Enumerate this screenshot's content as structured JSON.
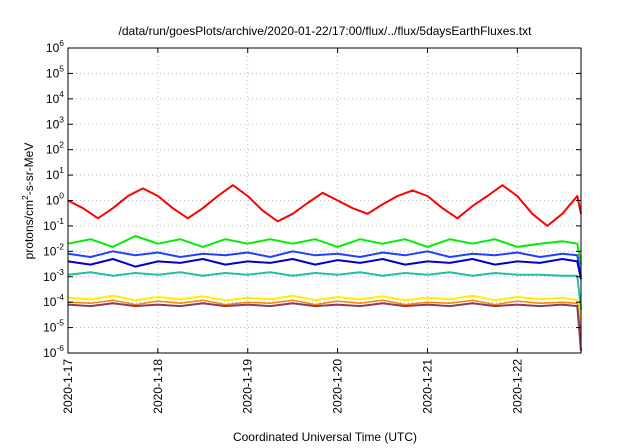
{
  "chart_data": {
    "type": "line",
    "title": "/data/run/goesPlots/archive/2020-01-22/17:00/flux/../flux/5daysEarthFluxes.txt",
    "xlabel": "Coordinated Universal Time (UTC)",
    "ylabel": {
      "base": "protons/cm",
      "sup": "2",
      "rest": "-s-sr-MeV"
    },
    "y_scale": "log",
    "ylim": [
      1e-06,
      1000000.0
    ],
    "y_ticks": [
      {
        "base": "10",
        "exp": "6",
        "value": 1000000.0
      },
      {
        "base": "10",
        "exp": "5",
        "value": 100000.0
      },
      {
        "base": "10",
        "exp": "4",
        "value": 10000.0
      },
      {
        "base": "10",
        "exp": "3",
        "value": 1000.0
      },
      {
        "base": "10",
        "exp": "2",
        "value": 100.0
      },
      {
        "base": "10",
        "exp": "1",
        "value": 10.0
      },
      {
        "base": "10",
        "exp": "0",
        "value": 1.0
      },
      {
        "base": "10",
        "exp": "-1",
        "value": 0.1
      },
      {
        "base": "10",
        "exp": "-2",
        "value": 0.01
      },
      {
        "base": "10",
        "exp": "-3",
        "value": 0.001
      },
      {
        "base": "10",
        "exp": "-4",
        "value": 0.0001
      },
      {
        "base": "10",
        "exp": "-5",
        "value": 1e-05
      },
      {
        "base": "10",
        "exp": "-6",
        "value": 1e-06
      }
    ],
    "x_ticks": [
      "2020-1-17",
      "2020-1-18",
      "2020-1-19",
      "2020-1-20",
      "2020-1-21",
      "2020-1-22"
    ],
    "xlim": [
      "2020-01-17 00:00",
      "2020-01-22 17:00"
    ],
    "grid": true,
    "series": [
      {
        "color": "#ff0000",
        "width": 2,
        "x": [
          "2020-01-17 00:00",
          "2020-01-17 04:00",
          "2020-01-17 08:00",
          "2020-01-17 12:00",
          "2020-01-17 16:00",
          "2020-01-17 20:00",
          "2020-01-18 00:00",
          "2020-01-18 04:00",
          "2020-01-18 08:00",
          "2020-01-18 12:00",
          "2020-01-18 16:00",
          "2020-01-18 20:00",
          "2020-01-19 00:00",
          "2020-01-19 04:00",
          "2020-01-19 08:00",
          "2020-01-19 12:00",
          "2020-01-19 16:00",
          "2020-01-19 20:00",
          "2020-01-20 00:00",
          "2020-01-20 04:00",
          "2020-01-20 08:00",
          "2020-01-20 12:00",
          "2020-01-20 16:00",
          "2020-01-20 20:00",
          "2020-01-21 00:00",
          "2020-01-21 04:00",
          "2020-01-21 08:00",
          "2020-01-21 12:00",
          "2020-01-21 16:00",
          "2020-01-21 20:00",
          "2020-01-22 00:00",
          "2020-01-22 04:00",
          "2020-01-22 08:00",
          "2020-01-22 12:00",
          "2020-01-22 16:00",
          "2020-01-22 17:00"
        ],
        "values": [
          1.0,
          0.5,
          0.2,
          0.5,
          1.5,
          3.0,
          1.5,
          0.5,
          0.2,
          0.5,
          1.5,
          4.0,
          1.5,
          0.4,
          0.15,
          0.3,
          0.8,
          2.0,
          1.0,
          0.5,
          0.3,
          0.7,
          1.5,
          2.5,
          1.5,
          0.5,
          0.2,
          0.6,
          1.5,
          4.0,
          1.5,
          0.3,
          0.1,
          0.3,
          1.5,
          0.3
        ]
      },
      {
        "color": "#00ee00",
        "width": 2,
        "x": [
          "2020-01-17 00:00",
          "2020-01-17 06:00",
          "2020-01-17 12:00",
          "2020-01-17 18:00",
          "2020-01-18 00:00",
          "2020-01-18 06:00",
          "2020-01-18 12:00",
          "2020-01-18 18:00",
          "2020-01-19 00:00",
          "2020-01-19 06:00",
          "2020-01-19 12:00",
          "2020-01-19 18:00",
          "2020-01-20 00:00",
          "2020-01-20 06:00",
          "2020-01-20 12:00",
          "2020-01-20 18:00",
          "2020-01-21 00:00",
          "2020-01-21 06:00",
          "2020-01-21 12:00",
          "2020-01-21 18:00",
          "2020-01-22 00:00",
          "2020-01-22 06:00",
          "2020-01-22 12:00",
          "2020-01-22 16:00",
          "2020-01-22 17:00"
        ],
        "values": [
          0.02,
          0.03,
          0.015,
          0.04,
          0.02,
          0.03,
          0.015,
          0.03,
          0.02,
          0.03,
          0.02,
          0.03,
          0.015,
          0.03,
          0.02,
          0.03,
          0.015,
          0.03,
          0.02,
          0.03,
          0.015,
          0.02,
          0.025,
          0.02,
          0.003
        ]
      },
      {
        "color": "#2040ff",
        "width": 2,
        "x": [
          "2020-01-17 00:00",
          "2020-01-17 06:00",
          "2020-01-17 12:00",
          "2020-01-17 18:00",
          "2020-01-18 00:00",
          "2020-01-18 06:00",
          "2020-01-18 12:00",
          "2020-01-18 18:00",
          "2020-01-19 00:00",
          "2020-01-19 06:00",
          "2020-01-19 12:00",
          "2020-01-19 18:00",
          "2020-01-20 00:00",
          "2020-01-20 06:00",
          "2020-01-20 12:00",
          "2020-01-20 18:00",
          "2020-01-21 00:00",
          "2020-01-21 06:00",
          "2020-01-21 12:00",
          "2020-01-21 18:00",
          "2020-01-22 00:00",
          "2020-01-22 06:00",
          "2020-01-22 12:00",
          "2020-01-22 16:00",
          "2020-01-22 17:00"
        ],
        "values": [
          0.008,
          0.006,
          0.01,
          0.007,
          0.009,
          0.006,
          0.008,
          0.007,
          0.009,
          0.006,
          0.01,
          0.007,
          0.008,
          0.006,
          0.009,
          0.007,
          0.01,
          0.006,
          0.008,
          0.007,
          0.009,
          0.006,
          0.008,
          0.007,
          0.001
        ]
      },
      {
        "color": "#0000cc",
        "width": 2,
        "x": [
          "2020-01-17 00:00",
          "2020-01-17 06:00",
          "2020-01-17 12:00",
          "2020-01-17 18:00",
          "2020-01-18 00:00",
          "2020-01-18 06:00",
          "2020-01-18 12:00",
          "2020-01-18 18:00",
          "2020-01-19 00:00",
          "2020-01-19 06:00",
          "2020-01-19 12:00",
          "2020-01-19 18:00",
          "2020-01-20 00:00",
          "2020-01-20 06:00",
          "2020-01-20 12:00",
          "2020-01-20 18:00",
          "2020-01-21 00:00",
          "2020-01-21 06:00",
          "2020-01-21 12:00",
          "2020-01-21 18:00",
          "2020-01-22 00:00",
          "2020-01-22 06:00",
          "2020-01-22 12:00",
          "2020-01-22 16:00",
          "2020-01-22 17:00"
        ],
        "values": [
          0.004,
          0.003,
          0.005,
          0.0025,
          0.004,
          0.0035,
          0.005,
          0.003,
          0.004,
          0.0035,
          0.005,
          0.003,
          0.0045,
          0.0035,
          0.005,
          0.003,
          0.004,
          0.0035,
          0.005,
          0.003,
          0.004,
          0.0035,
          0.005,
          0.004,
          0.0008
        ]
      },
      {
        "color": "#20c0a0",
        "width": 2,
        "x": [
          "2020-01-17 00:00",
          "2020-01-17 06:00",
          "2020-01-17 12:00",
          "2020-01-17 18:00",
          "2020-01-18 00:00",
          "2020-01-18 06:00",
          "2020-01-18 12:00",
          "2020-01-18 18:00",
          "2020-01-19 00:00",
          "2020-01-19 06:00",
          "2020-01-19 12:00",
          "2020-01-19 18:00",
          "2020-01-20 00:00",
          "2020-01-20 06:00",
          "2020-01-20 12:00",
          "2020-01-20 18:00",
          "2020-01-21 00:00",
          "2020-01-21 06:00",
          "2020-01-21 12:00",
          "2020-01-21 18:00",
          "2020-01-22 00:00",
          "2020-01-22 06:00",
          "2020-01-22 12:00",
          "2020-01-22 16:00",
          "2020-01-22 17:00"
        ],
        "values": [
          0.0012,
          0.0015,
          0.0011,
          0.0014,
          0.0012,
          0.0015,
          0.0011,
          0.0014,
          0.0012,
          0.0015,
          0.0011,
          0.0014,
          0.0012,
          0.0015,
          0.0011,
          0.0014,
          0.0012,
          0.0015,
          0.0011,
          0.0014,
          0.0012,
          0.0012,
          0.0011,
          0.0011,
          5e-05
        ]
      },
      {
        "color": "#ffee00",
        "width": 2,
        "x": [
          "2020-01-17 00:00",
          "2020-01-17 06:00",
          "2020-01-17 12:00",
          "2020-01-17 18:00",
          "2020-01-18 00:00",
          "2020-01-18 06:00",
          "2020-01-18 12:00",
          "2020-01-18 18:00",
          "2020-01-19 00:00",
          "2020-01-19 06:00",
          "2020-01-19 12:00",
          "2020-01-19 18:00",
          "2020-01-20 00:00",
          "2020-01-20 06:00",
          "2020-01-20 12:00",
          "2020-01-20 18:00",
          "2020-01-21 00:00",
          "2020-01-21 06:00",
          "2020-01-21 12:00",
          "2020-01-21 18:00",
          "2020-01-22 00:00",
          "2020-01-22 06:00",
          "2020-01-22 12:00",
          "2020-01-22 16:00",
          "2020-01-22 17:00"
        ],
        "values": [
          0.00015,
          0.00013,
          0.00018,
          0.00012,
          0.00016,
          0.00013,
          0.00017,
          0.00012,
          0.00015,
          0.00013,
          0.00018,
          0.00012,
          0.00016,
          0.00013,
          0.00017,
          0.00012,
          0.00015,
          0.00013,
          0.00018,
          0.00012,
          0.00016,
          0.00013,
          0.00015,
          0.00012,
          2e-05
        ]
      },
      {
        "color": "#ff8000",
        "width": 1.5,
        "x": [
          "2020-01-17 00:00",
          "2020-01-17 06:00",
          "2020-01-17 12:00",
          "2020-01-17 18:00",
          "2020-01-18 00:00",
          "2020-01-18 06:00",
          "2020-01-18 12:00",
          "2020-01-18 18:00",
          "2020-01-19 00:00",
          "2020-01-19 06:00",
          "2020-01-19 12:00",
          "2020-01-19 18:00",
          "2020-01-20 00:00",
          "2020-01-20 06:00",
          "2020-01-20 12:00",
          "2020-01-20 18:00",
          "2020-01-21 00:00",
          "2020-01-21 06:00",
          "2020-01-21 12:00",
          "2020-01-21 18:00",
          "2020-01-22 00:00",
          "2020-01-22 06:00",
          "2020-01-22 12:00",
          "2020-01-22 16:00",
          "2020-01-22 17:00"
        ],
        "values": [
          0.0001,
          9e-05,
          0.00012,
          8e-05,
          0.00011,
          9e-05,
          0.00012,
          8e-05,
          0.0001,
          9e-05,
          0.00012,
          8e-05,
          0.00011,
          9e-05,
          0.00012,
          8e-05,
          0.0001,
          9e-05,
          0.00012,
          8e-05,
          0.00011,
          9e-05,
          0.0001,
          9e-05,
          5e-06
        ]
      },
      {
        "color": "#8b3a62",
        "width": 2,
        "x": [
          "2020-01-17 00:00",
          "2020-01-17 06:00",
          "2020-01-17 12:00",
          "2020-01-17 18:00",
          "2020-01-18 00:00",
          "2020-01-18 06:00",
          "2020-01-18 12:00",
          "2020-01-18 18:00",
          "2020-01-19 00:00",
          "2020-01-19 06:00",
          "2020-01-19 12:00",
          "2020-01-19 18:00",
          "2020-01-20 00:00",
          "2020-01-20 06:00",
          "2020-01-20 12:00",
          "2020-01-20 18:00",
          "2020-01-21 00:00",
          "2020-01-21 06:00",
          "2020-01-21 12:00",
          "2020-01-21 18:00",
          "2020-01-22 00:00",
          "2020-01-22 06:00",
          "2020-01-22 12:00",
          "2020-01-22 16:00",
          "2020-01-22 17:00"
        ],
        "values": [
          8e-05,
          7e-05,
          9e-05,
          7e-05,
          8e-05,
          7e-05,
          9e-05,
          7e-05,
          8e-05,
          7e-05,
          9e-05,
          7e-05,
          8e-05,
          7e-05,
          9e-05,
          7e-05,
          8e-05,
          7e-05,
          9e-05,
          7e-05,
          8e-05,
          7e-05,
          8e-05,
          7e-05,
          1.2e-06
        ]
      }
    ]
  }
}
